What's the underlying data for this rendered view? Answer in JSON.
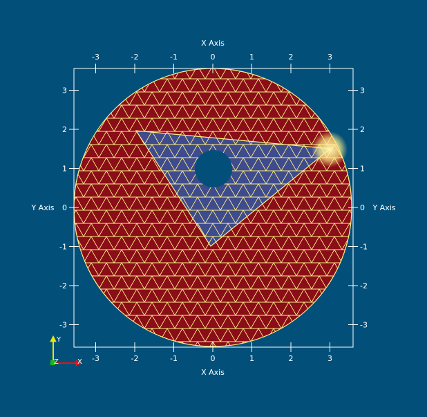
{
  "scene": {
    "background": "#02507a",
    "axes_color": "#ffffff",
    "mesh_edge_color": "#ffef88",
    "outer_region_color": "#8a0e17",
    "inner_region_color": "#3e4b8c",
    "hole_color": "#02507a"
  },
  "axes": {
    "x_title_top": "X Axis",
    "x_title_bottom": "X Axis",
    "y_title_left": "Y Axis",
    "y_title_right": "Y Axis",
    "x_ticks": [
      "-3",
      "-2",
      "-1",
      "0",
      "1",
      "2",
      "3"
    ],
    "y_ticks": [
      "3",
      "2",
      "1",
      "0",
      "-1",
      "-2",
      "-3"
    ]
  },
  "orientation_widget": {
    "y_label": "Y",
    "z_label": "Z",
    "x_label": "X",
    "y_color": "#e8e800",
    "z_color": "#1bb81b",
    "x_color": "#d81818"
  }
}
